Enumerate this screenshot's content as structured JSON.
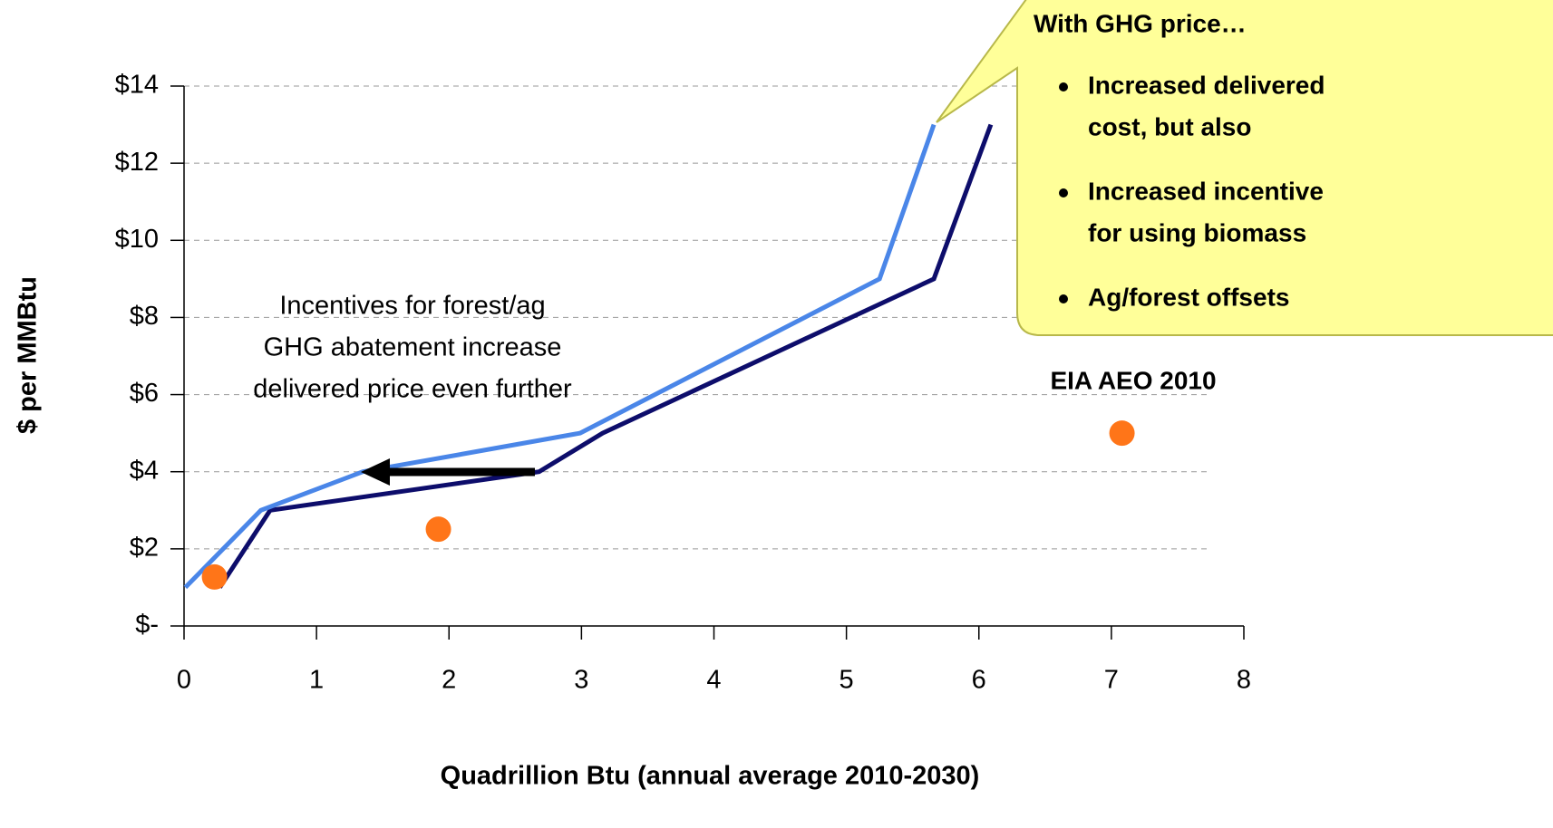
{
  "chart_data": {
    "type": "line",
    "x_label": "Quadrillion Btu (annual average 2010-2030)",
    "y_label": "$ per MMBtu",
    "xlim": [
      0,
      8
    ],
    "xticks": [
      0,
      1,
      2,
      3,
      4,
      5,
      6,
      7,
      8
    ],
    "ylim": [
      0,
      14
    ],
    "yticks": [
      {
        "value": 0,
        "label": "$-"
      },
      {
        "value": 2,
        "label": "$2"
      },
      {
        "value": 4,
        "label": "$4"
      },
      {
        "value": 6,
        "label": "$6"
      },
      {
        "value": 8,
        "label": "$8"
      },
      {
        "value": 10,
        "label": "$10"
      },
      {
        "value": 12,
        "label": "$12"
      },
      {
        "value": 14,
        "label": "$14"
      }
    ],
    "grid": true,
    "series": [
      {
        "mode": "line",
        "color": "#0d0d6b",
        "x": [
          0.27,
          0.65,
          2.68,
          3.16,
          5.66,
          6.09
        ],
        "values": [
          1,
          3,
          4,
          5,
          9,
          13
        ]
      },
      {
        "mode": "line",
        "color": "#4a86e8",
        "x": [
          0.01,
          0.58,
          1.35,
          2.99,
          5.25,
          5.66
        ],
        "values": [
          1,
          3,
          4,
          5,
          9,
          13
        ]
      },
      {
        "mode": "markers",
        "color": "#ff7518",
        "x": [
          0.23,
          1.92,
          7.08
        ],
        "values": [
          1.27,
          2.51,
          5
        ]
      }
    ],
    "annotations": {
      "incentives": [
        "Incentives for forest/ag",
        "GHG abatement increase",
        "delivered price even further"
      ],
      "eia": "EIA AEO 2010"
    },
    "callout": {
      "title": "With GHG price…",
      "bullets": [
        [
          "Increased delivered",
          "cost, but also"
        ],
        [
          "Increased incentive",
          "for using biomass"
        ],
        [
          "Ag/forest offsets"
        ]
      ]
    }
  }
}
